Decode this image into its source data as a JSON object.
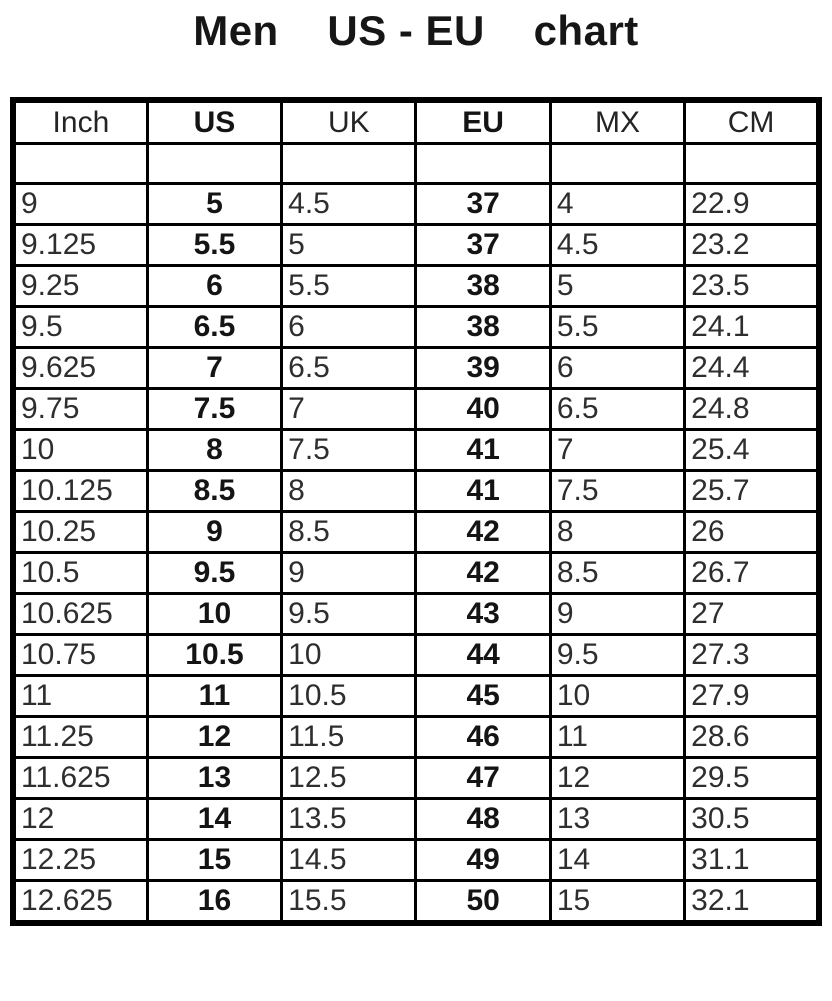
{
  "page": {
    "title": "Men    US - EU    chart"
  },
  "chart_data": {
    "type": "table",
    "title": "Men US - EU chart",
    "columns": [
      "Inch",
      "US",
      "UK",
      "EU",
      "MX",
      "CM"
    ],
    "bold_columns": [
      "US",
      "EU"
    ],
    "rows": [
      [
        "9",
        "5",
        "4.5",
        "37",
        "4",
        "22.9"
      ],
      [
        "9.125",
        "5.5",
        "5",
        "37",
        "4.5",
        "23.2"
      ],
      [
        "9.25",
        "6",
        "5.5",
        "38",
        "5",
        "23.5"
      ],
      [
        "9.5",
        "6.5",
        "6",
        "38",
        "5.5",
        "24.1"
      ],
      [
        "9.625",
        "7",
        "6.5",
        "39",
        "6",
        "24.4"
      ],
      [
        "9.75",
        "7.5",
        "7",
        "40",
        "6.5",
        "24.8"
      ],
      [
        "10",
        "8",
        "7.5",
        "41",
        "7",
        "25.4"
      ],
      [
        "10.125",
        "8.5",
        "8",
        "41",
        "7.5",
        "25.7"
      ],
      [
        "10.25",
        "9",
        "8.5",
        "42",
        "8",
        "26"
      ],
      [
        "10.5",
        "9.5",
        "9",
        "42",
        "8.5",
        "26.7"
      ],
      [
        "10.625",
        "10",
        "9.5",
        "43",
        "9",
        "27"
      ],
      [
        "10.75",
        "10.5",
        "10",
        "44",
        "9.5",
        "27.3"
      ],
      [
        "11",
        "11",
        "10.5",
        "45",
        "10",
        "27.9"
      ],
      [
        "11.25",
        "12",
        "11.5",
        "46",
        "11",
        "28.6"
      ],
      [
        "11.625",
        "13",
        "12.5",
        "47",
        "12",
        "29.5"
      ],
      [
        "12",
        "14",
        "13.5",
        "48",
        "13",
        "30.5"
      ],
      [
        "12.25",
        "15",
        "14.5",
        "49",
        "14",
        "31.1"
      ],
      [
        "12.625",
        "16",
        "15.5",
        "50",
        "15",
        "32.1"
      ]
    ]
  },
  "table": {
    "headers": [
      {
        "key": "inch",
        "label": "Inch",
        "bold": false
      },
      {
        "key": "us",
        "label": "US",
        "bold": true
      },
      {
        "key": "uk",
        "label": "UK",
        "bold": false
      },
      {
        "key": "eu",
        "label": "EU",
        "bold": true
      },
      {
        "key": "mx",
        "label": "MX",
        "bold": false
      },
      {
        "key": "cm",
        "label": "CM",
        "bold": false
      }
    ],
    "colors": {
      "border": "#000000",
      "text_regular": "#2e2e2e",
      "text_bold": "#141414",
      "background": "#ffffff"
    }
  }
}
